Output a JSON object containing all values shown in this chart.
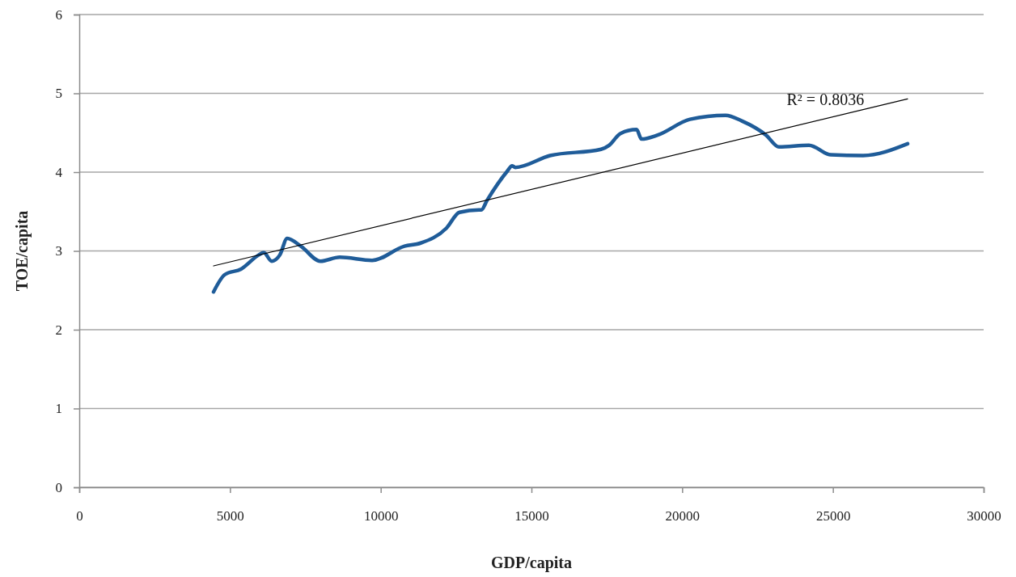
{
  "chart_data": {
    "type": "line",
    "xlabel": "GDP/capita",
    "ylabel": "TOE/capita",
    "xlim": [
      0,
      30000
    ],
    "xticks": [
      0,
      5000,
      10000,
      15000,
      20000,
      25000,
      30000
    ],
    "ylim": [
      0,
      6
    ],
    "yticks": [
      0,
      1,
      2,
      3,
      4,
      5,
      6
    ],
    "grid": "y",
    "series": [
      {
        "color": "#1f5c99",
        "x": [
          4454,
          4830,
          5367,
          5957,
          6118,
          6386,
          6655,
          6896,
          7352,
          7996,
          8640,
          9714,
          10787,
          11324,
          12182,
          12612,
          13256,
          13336,
          13524,
          14195,
          14356,
          14463,
          15617,
          17308,
          17576,
          17952,
          18488,
          18649,
          19186,
          20259,
          21440,
          21977,
          22782,
          23211,
          24204,
          24929,
          26002,
          27478
        ],
        "values": [
          2.48,
          2.7,
          2.77,
          2.95,
          2.98,
          2.87,
          2.95,
          3.16,
          3.06,
          2.87,
          2.92,
          2.88,
          3.06,
          3.1,
          3.29,
          3.49,
          3.52,
          3.52,
          3.64,
          4.01,
          4.08,
          4.06,
          4.21,
          4.29,
          4.34,
          4.49,
          4.54,
          4.42,
          4.47,
          4.67,
          4.72,
          4.65,
          4.47,
          4.32,
          4.34,
          4.22,
          4.21,
          4.36
        ]
      },
      {
        "type": "line",
        "color": "#000000",
        "x": [
          4454,
          27478
        ],
        "values": [
          2.81,
          4.93
        ]
      }
    ],
    "annotations": [
      "R² = 0.8036"
    ]
  }
}
